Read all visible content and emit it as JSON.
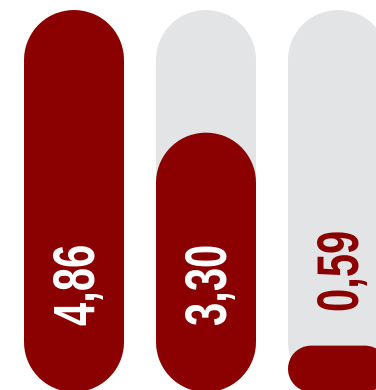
{
  "chart_data": {
    "type": "bar",
    "orientation": "vertical",
    "categories": [
      "",
      "",
      ""
    ],
    "values": [
      4.86,
      3.3,
      0.59
    ],
    "value_labels": [
      "4,86",
      "3,30",
      "0,59"
    ],
    "ylim": [
      0,
      4.86
    ],
    "grid": false,
    "legend": "none",
    "colors": {
      "bar": "#8b0000",
      "track": "#e3e4e6",
      "label_on_bar": "#ffffff",
      "label_on_track": "#8b0000"
    }
  }
}
